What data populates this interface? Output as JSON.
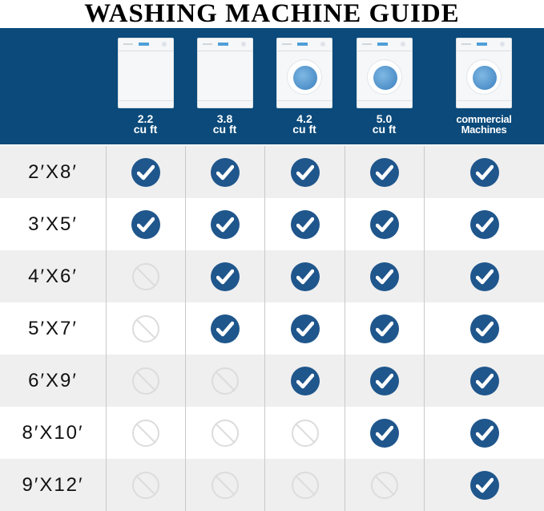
{
  "title": "WASHING MACHINE GUIDE",
  "colors": {
    "header_bg": "#0b4a7a",
    "check": "#1f568c",
    "row_alt": "#efefef"
  },
  "machines": [
    {
      "line1": "2.2",
      "line2": "cu ft",
      "type": "top-panel-no-door"
    },
    {
      "line1": "3.8",
      "line2": "cu ft",
      "type": "top-panel-no-door"
    },
    {
      "line1": "4.2",
      "line2": "cu ft",
      "type": "front-load"
    },
    {
      "line1": "5.0",
      "line2": "cu ft",
      "type": "front-load"
    },
    {
      "line1": "commercial",
      "line2": "Machines",
      "type": "front-load"
    }
  ],
  "rows": [
    {
      "size": "2′X8′",
      "fits": [
        true,
        true,
        true,
        true,
        true
      ]
    },
    {
      "size": "3′X5′",
      "fits": [
        true,
        true,
        true,
        true,
        true
      ]
    },
    {
      "size": "4′X6′",
      "fits": [
        false,
        true,
        true,
        true,
        true
      ]
    },
    {
      "size": "5′X7′",
      "fits": [
        false,
        true,
        true,
        true,
        true
      ]
    },
    {
      "size": "6′X9′",
      "fits": [
        false,
        false,
        true,
        true,
        true
      ]
    },
    {
      "size": "8′X10′",
      "fits": [
        false,
        false,
        false,
        true,
        true
      ]
    },
    {
      "size": "9′X12′",
      "fits": [
        false,
        false,
        false,
        false,
        true
      ]
    }
  ],
  "icons": {
    "yes": "check-circle-icon",
    "no": "prohibited-icon"
  }
}
